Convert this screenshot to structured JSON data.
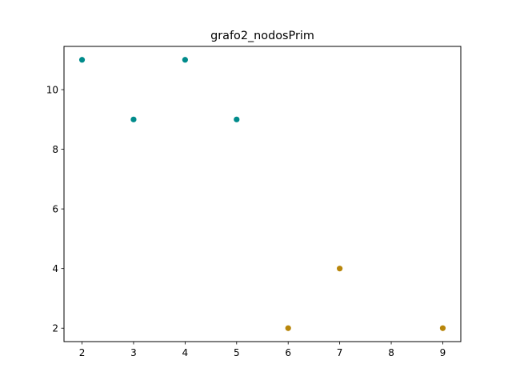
{
  "chart_data": {
    "type": "scatter",
    "title": "grafo2_nodosPrim",
    "xlabel": "",
    "ylabel": "",
    "xlim": [
      1.65,
      9.35
    ],
    "ylim": [
      1.55,
      11.45
    ],
    "xticks": [
      2,
      3,
      4,
      5,
      6,
      7,
      8,
      9
    ],
    "yticks": [
      2,
      4,
      6,
      8,
      10
    ],
    "grid": false,
    "series": [
      {
        "color": "#008b8b",
        "points": [
          [
            2,
            11
          ],
          [
            3,
            9
          ],
          [
            4,
            11
          ],
          [
            5,
            9
          ]
        ]
      },
      {
        "color": "#b8860b",
        "points": [
          [
            6,
            2
          ],
          [
            7,
            4
          ],
          [
            9,
            2
          ]
        ]
      }
    ]
  }
}
